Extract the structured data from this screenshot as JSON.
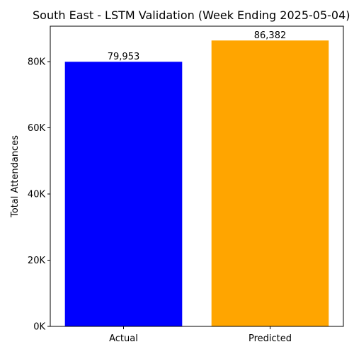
{
  "chart_data": {
    "type": "bar",
    "title": "South East - LSTM Validation (Week Ending 2025-05-04)",
    "xlabel": "",
    "ylabel": "Total Attendances",
    "categories": [
      "Actual",
      "Predicted"
    ],
    "values": [
      79953,
      86382
    ],
    "value_labels": [
      "79,953",
      "86,382"
    ],
    "colors": [
      "#0000ff",
      "#ffa500"
    ],
    "ylim": [
      0,
      90700
    ],
    "yticks": [
      0,
      20000,
      40000,
      60000,
      80000
    ],
    "ytick_labels": [
      "0K",
      "20K",
      "40K",
      "60K",
      "80K"
    ],
    "grid": false,
    "legend": "none"
  }
}
